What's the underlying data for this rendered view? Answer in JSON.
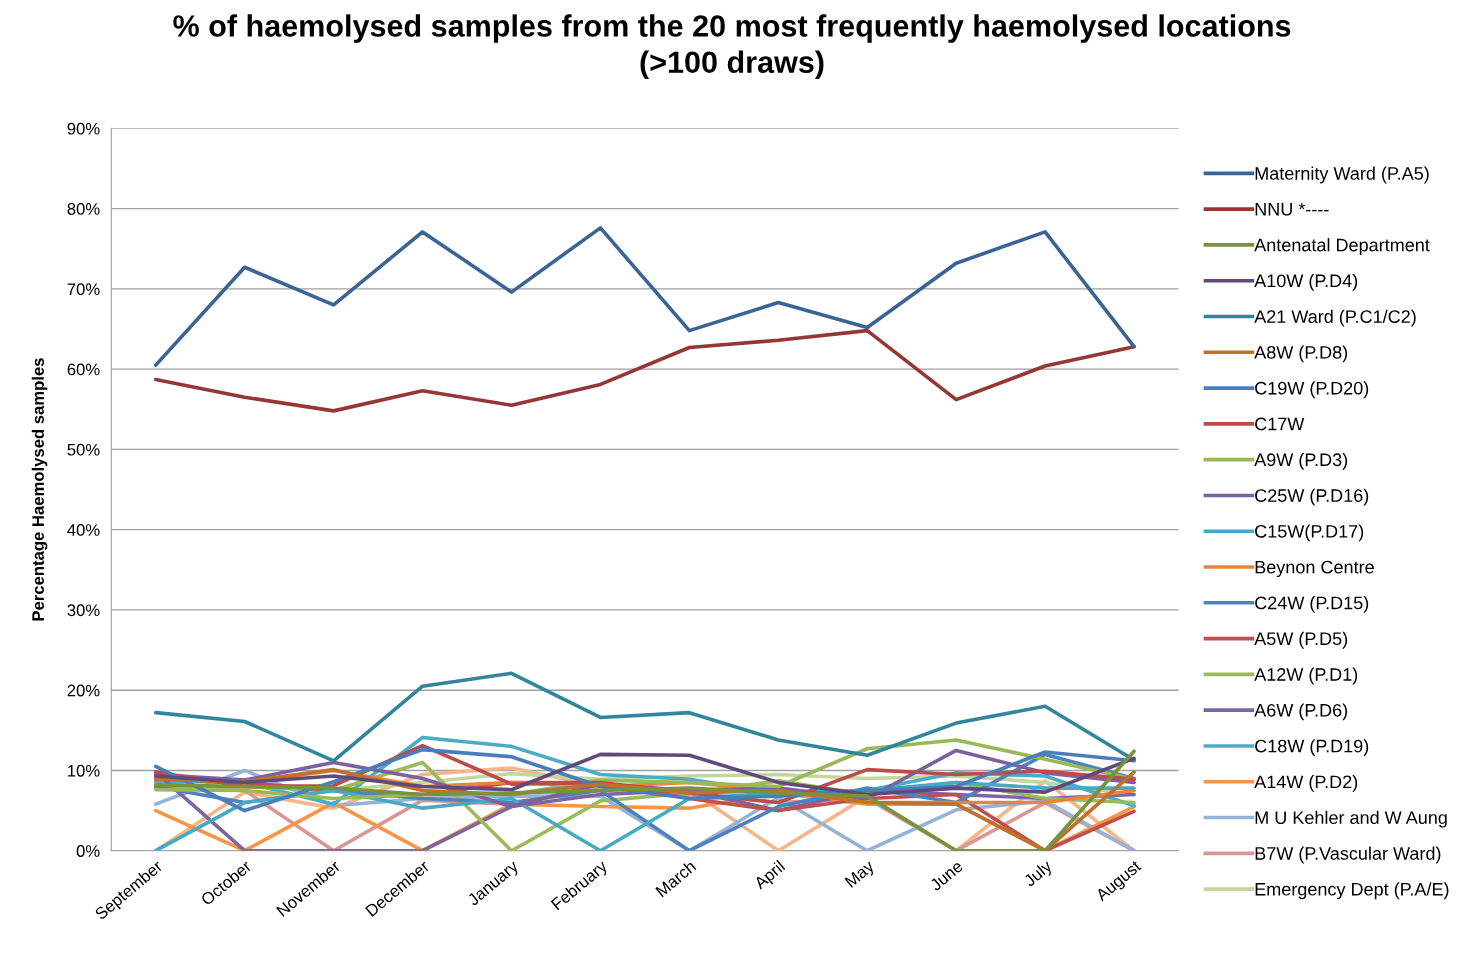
{
  "chart_data": {
    "type": "line",
    "title": "% of haemolysed samples from the 20 most frequently haemolysed locations\n(>100 draws)",
    "ylabel": "Percentage Haemolysed samples",
    "categories": [
      "September",
      "October",
      "November",
      "December",
      "January",
      "February",
      "March",
      "April",
      "May",
      "June",
      "July",
      "August"
    ],
    "ylim": [
      0,
      90
    ],
    "yticks": [
      {
        "value": 0,
        "label": "0%"
      },
      {
        "value": 10,
        "label": "10%"
      },
      {
        "value": 20,
        "label": "20%"
      },
      {
        "value": 30,
        "label": "30%"
      },
      {
        "value": 40,
        "label": "40%"
      },
      {
        "value": 50,
        "label": "50%"
      },
      {
        "value": 60,
        "label": "60%"
      },
      {
        "value": 70,
        "label": "70%"
      },
      {
        "value": 80,
        "label": "80%"
      },
      {
        "value": 90,
        "label": "90%"
      }
    ],
    "grid": "y",
    "legend": "right",
    "marker": "none",
    "line_style": "solid",
    "series": [
      {
        "name": "Maternity Ward (P.A5)",
        "color": "#3b6496",
        "values": [
          60.5,
          72.7,
          68.0,
          77.1,
          69.6,
          77.6,
          64.8,
          68.3,
          65.2,
          73.2,
          77.1,
          62.8
        ]
      },
      {
        "name": "NNU *----",
        "color": "#953735",
        "values": [
          58.7,
          56.5,
          54.8,
          57.3,
          55.5,
          58.1,
          62.7,
          63.6,
          64.8,
          56.2,
          60.4,
          62.8
        ]
      },
      {
        "name": "Antenatal Department",
        "color": "#77933c",
        "values": [
          8.2,
          8.0,
          7.8,
          7.0,
          7.2,
          7.5,
          7.8,
          7.2,
          6.8,
          0.0,
          0.0,
          12.4
        ]
      },
      {
        "name": "A10W (P.D4)",
        "color": "#604a7b",
        "values": [
          9.3,
          8.5,
          9.3,
          8.0,
          7.6,
          12.0,
          11.9,
          8.5,
          7.0,
          7.8,
          7.3,
          11.5
        ]
      },
      {
        "name": "A21 Ward (P.C1/C2)",
        "color": "#31859c",
        "values": [
          17.2,
          16.1,
          11.2,
          20.5,
          22.1,
          16.6,
          17.2,
          13.8,
          11.9,
          15.9,
          18.0,
          11.3
        ]
      },
      {
        "name": "A8W (P.D8)",
        "color": "#c0712b",
        "values": [
          8.9,
          8.6,
          10.1,
          7.5,
          7.0,
          8.3,
          7.2,
          7.5,
          6.0,
          5.8,
          0.0,
          9.8
        ]
      },
      {
        "name": "C19W (P.D20)",
        "color": "#4a7ebb",
        "values": [
          10.5,
          5.0,
          8.6,
          12.6,
          11.7,
          8.0,
          6.5,
          6.8,
          7.5,
          8.0,
          12.3,
          11.2
        ]
      },
      {
        "name": "C17W",
        "color": "#be4b48",
        "values": [
          9.8,
          8.0,
          8.1,
          13.1,
          8.3,
          8.5,
          7.2,
          6.0,
          10.1,
          9.5,
          9.9,
          8.9
        ]
      },
      {
        "name": "A9W (P.D3)",
        "color": "#98b954",
        "values": [
          7.6,
          7.5,
          6.5,
          7.0,
          7.0,
          8.8,
          8.5,
          8.0,
          12.7,
          13.8,
          11.4,
          8.9
        ]
      },
      {
        "name": "C25W (P.D16)",
        "color": "#7d60a0",
        "values": [
          9.5,
          8.8,
          11.0,
          9.0,
          5.5,
          8.3,
          7.5,
          7.8,
          6.5,
          12.5,
          9.7,
          8.5
        ]
      },
      {
        "name": "C15W(P.D17)",
        "color": "#46aac5",
        "values": [
          0.0,
          6.0,
          7.5,
          5.3,
          6.5,
          0.0,
          6.5,
          7.2,
          7.5,
          8.5,
          7.8,
          7.8
        ]
      },
      {
        "name": "Beynon Centre",
        "color": "#e8853a",
        "values": [
          9.0,
          8.5,
          10.0,
          8.0,
          8.5,
          8.0,
          8.5,
          7.5,
          6.0,
          6.0,
          6.0,
          7.5
        ]
      },
      {
        "name": "C24W (P.D15)",
        "color": "#4f81bd",
        "values": [
          8.0,
          6.0,
          7.5,
          6.5,
          6.0,
          7.5,
          0.0,
          5.5,
          7.8,
          6.0,
          12.0,
          9.0
        ]
      },
      {
        "name": "A5W (P.D5)",
        "color": "#c0504d",
        "values": [
          9.0,
          8.5,
          7.5,
          7.0,
          8.5,
          8.5,
          6.5,
          5.0,
          6.5,
          7.0,
          0.0,
          4.9
        ]
      },
      {
        "name": "A12W (P.D1)",
        "color": "#9bbb59",
        "values": [
          7.8,
          8.0,
          7.5,
          11.0,
          0.0,
          6.2,
          7.2,
          8.7,
          7.0,
          8.5,
          6.5,
          6.0
        ]
      },
      {
        "name": "A6W (P.D6)",
        "color": "#8064a2",
        "values": [
          9.8,
          0.0,
          0.0,
          0.0,
          5.5,
          7.0,
          7.5,
          5.0,
          7.5,
          7.0,
          6.5,
          7.0
        ]
      },
      {
        "name": "C18W (P.D19)",
        "color": "#4bacc6",
        "values": [
          8.7,
          8.5,
          5.8,
          14.1,
          13.0,
          9.5,
          8.9,
          7.2,
          7.5,
          9.7,
          9.3,
          5.6
        ]
      },
      {
        "name": "A14W (P.D2)",
        "color": "#f79646",
        "values": [
          5.0,
          0.0,
          6.0,
          0.0,
          5.8,
          5.5,
          5.3,
          7.2,
          5.8,
          5.8,
          0.0,
          5.5
        ]
      },
      {
        "name": "M U Kehler and W Aung",
        "color": "#95b3d7",
        "values": [
          5.8,
          10.0,
          5.6,
          6.5,
          6.8,
          6.8,
          0.0,
          6.6,
          0.0,
          5.1,
          6.2,
          0.0
        ]
      },
      {
        "name": "B7W (P.Vascular Ward)",
        "color": "#d99694",
        "values": [
          8.5,
          7.5,
          0.0,
          6.3,
          5.8,
          8.0,
          7.0,
          6.0,
          6.5,
          0.0,
          6.0,
          0.0
        ]
      },
      {
        "name": "Emergency Dept (P.A/E)",
        "color": "#c3d69b",
        "values": [
          8.0,
          8.0,
          7.5,
          8.5,
          9.6,
          8.9,
          9.3,
          9.5,
          9.0,
          9.3,
          8.5,
          7.0
        ]
      },
      {
        "color": "#f9b48a",
        "values": [
          0.0,
          7.3,
          5.3,
          9.5,
          10.3,
          8.0,
          7.6,
          0.0,
          6.8,
          0.0,
          8.7,
          0.0
        ]
      }
    ]
  }
}
